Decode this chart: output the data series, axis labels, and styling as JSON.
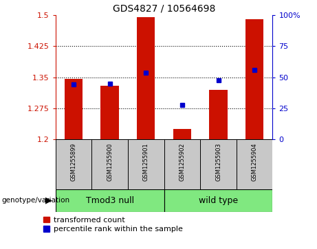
{
  "title": "GDS4827 / 10564698",
  "samples": [
    "GSM1255899",
    "GSM1255900",
    "GSM1255901",
    "GSM1255902",
    "GSM1255903",
    "GSM1255904"
  ],
  "red_values": [
    1.346,
    1.33,
    1.495,
    1.225,
    1.32,
    1.49
  ],
  "blue_values": [
    1.333,
    1.335,
    1.36,
    1.283,
    1.342,
    1.367
  ],
  "y_min": 1.2,
  "y_max": 1.5,
  "y_ticks_left": [
    1.2,
    1.275,
    1.35,
    1.425,
    1.5
  ],
  "y_ticks_right": [
    0,
    25,
    50,
    75,
    100
  ],
  "group1_label": "Tmod3 null",
  "group2_label": "wild type",
  "group_color": "#80E880",
  "genotype_label": "genotype/variation",
  "legend_red": "transformed count",
  "legend_blue": "percentile rank within the sample",
  "bar_color": "#CC1100",
  "dot_color": "#0000CC",
  "bg_xticklabel": "#C8C8C8",
  "left_tick_color": "#CC1100",
  "right_tick_color": "#0000CC",
  "title_fontsize": 10,
  "tick_fontsize": 8,
  "sample_fontsize": 6,
  "legend_fontsize": 8
}
